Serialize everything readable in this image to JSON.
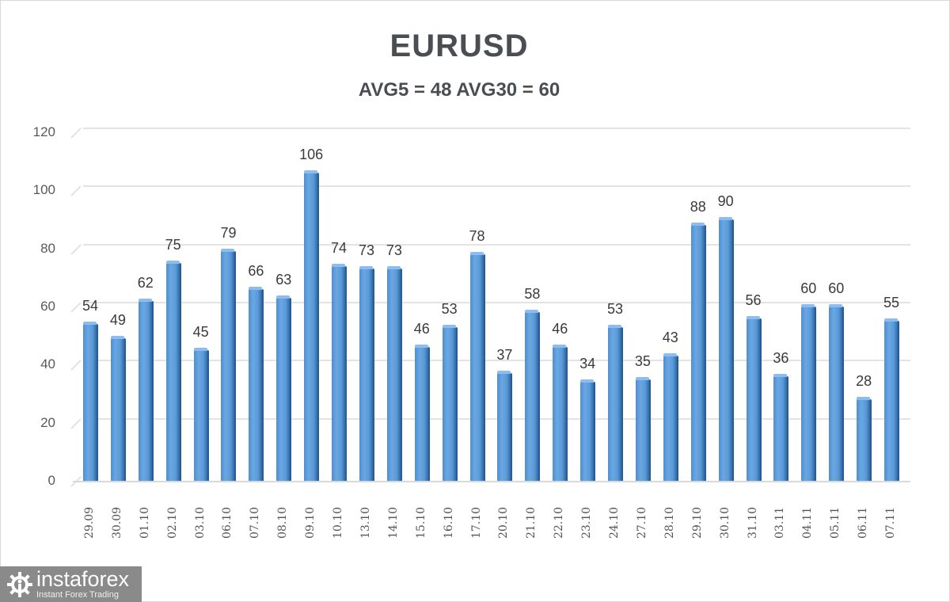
{
  "header": {
    "title": "EURUSD",
    "subtitle": "AVG5 = 48 AVG30 = 60"
  },
  "logo": {
    "name": "instaforex",
    "tagline": "Instant Forex Trading",
    "icon": "gear-person-icon"
  },
  "colors": {
    "bar": "#5b9ad8",
    "bar_dark": "#2f6aa8",
    "title_text": "#4a4d52",
    "gridline": "#e3e3e3",
    "logo_bg": "#8a8a8a"
  },
  "chart_data": {
    "type": "bar",
    "title": "EURUSD",
    "subtitle": "AVG5 = 48 AVG30 = 60",
    "xlabel": "",
    "ylabel": "",
    "ylim": [
      0,
      120
    ],
    "yticks": [
      0,
      20,
      40,
      60,
      80,
      100,
      120
    ],
    "grid": true,
    "legend": "none",
    "data_labels": true,
    "categories": [
      "29.09",
      "30.09",
      "01.10",
      "02.10",
      "03.10",
      "06.10",
      "07.10",
      "08.10",
      "09.10",
      "10.10",
      "13.10",
      "14.10",
      "15.10",
      "16.10",
      "17.10",
      "20.10",
      "21.10",
      "22.10",
      "23.10",
      "24.10",
      "27.10",
      "28.10",
      "29.10",
      "30.10",
      "31.10",
      "03.11",
      "04.11",
      "05.11",
      "06.11",
      "07.11"
    ],
    "values": [
      54,
      49,
      62,
      75,
      45,
      79,
      66,
      63,
      106,
      74,
      73,
      73,
      46,
      53,
      78,
      37,
      58,
      46,
      34,
      53,
      35,
      43,
      88,
      90,
      56,
      36,
      60,
      60,
      28,
      55
    ]
  }
}
